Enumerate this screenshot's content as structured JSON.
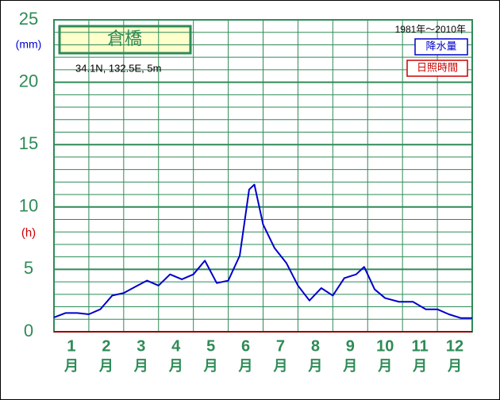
{
  "chart_data": {
    "type": "line",
    "station": "倉橋",
    "coordinates": "34.1N,  132.5E,  5m",
    "period": "1981年～2010年",
    "y_unit_left": "(mm)",
    "y_unit_right": "(h)",
    "x": [
      0,
      0.33,
      0.67,
      1.0,
      1.33,
      1.67,
      2.0,
      2.33,
      2.67,
      3.0,
      3.33,
      3.67,
      4.0,
      4.33,
      4.67,
      5.0,
      5.33,
      5.6,
      5.75,
      6.0,
      6.33,
      6.67,
      7.0,
      7.33,
      7.67,
      8.0,
      8.33,
      8.67,
      8.9,
      9.2,
      9.5,
      9.9,
      10.3,
      10.67,
      11.0,
      11.33,
      11.67,
      12.0
    ],
    "xlim": [
      0,
      12
    ],
    "month_labels": [
      "1",
      "2",
      "3",
      "4",
      "5",
      "6",
      "7",
      "8",
      "9",
      "10",
      "11",
      "12"
    ],
    "month_unit": "月",
    "series": [
      {
        "name": "降水量",
        "color": "#0000cc",
        "values": [
          1.15,
          1.5,
          1.5,
          1.4,
          1.8,
          2.9,
          3.1,
          3.6,
          4.1,
          3.7,
          4.6,
          4.2,
          4.6,
          5.7,
          3.9,
          4.1,
          6.1,
          11.4,
          11.8,
          8.6,
          6.7,
          5.5,
          3.7,
          2.5,
          3.5,
          2.9,
          4.3,
          4.6,
          5.2,
          3.4,
          2.7,
          2.4,
          2.4,
          1.8,
          1.8,
          1.4,
          1.1,
          1.1
        ]
      }
    ],
    "sunshine_legend": {
      "name": "日照時間",
      "color": "#cc0000"
    },
    "ylim": [
      0,
      25
    ],
    "yticks": [
      0,
      5,
      10,
      15,
      20,
      25
    ],
    "yticks_minor": [
      1,
      2,
      3,
      4,
      6,
      7,
      8,
      9,
      11,
      12,
      13,
      14,
      16,
      17,
      18,
      19,
      21,
      22,
      23,
      24
    ],
    "grid": true,
    "grid_color": "#2e8b57"
  }
}
